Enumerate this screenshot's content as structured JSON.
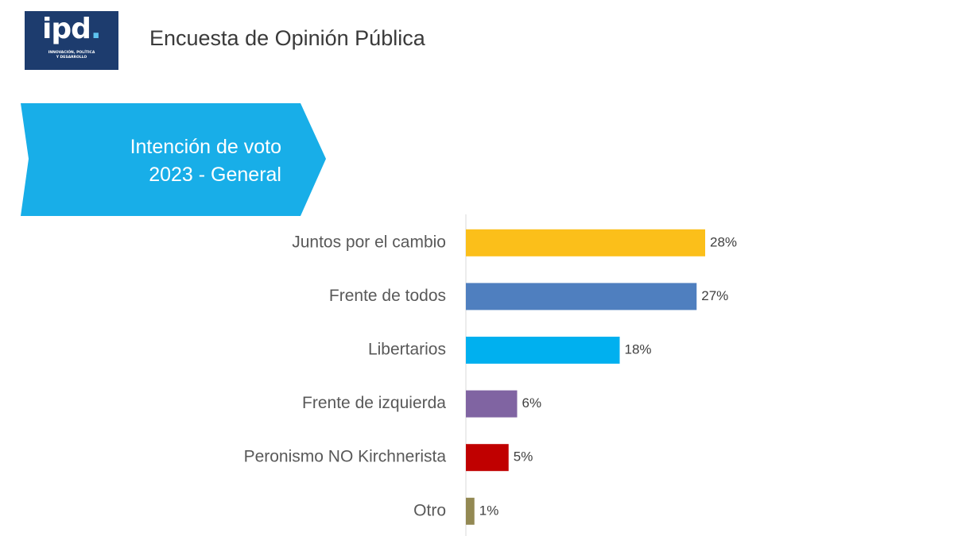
{
  "logo": {
    "word": "ipd",
    "dot": ".",
    "tagline_1": "INNOVACIÓN, POLÍTICA",
    "tagline_2": "Y DESARROLLO"
  },
  "header": {
    "title": "Encuesta de Opinión Pública"
  },
  "banner": {
    "line1": "Intención de voto",
    "line2": "2023 - General"
  },
  "colors": {
    "banner": "#18aee8",
    "logo_bg": "#1d3c6e",
    "bars": [
      "#fbbf1a",
      "#4f7fbf",
      "#00b0ef",
      "#8064a2",
      "#c00000",
      "#938953"
    ]
  },
  "chart_data": {
    "type": "bar",
    "orientation": "horizontal",
    "title": "Intención de voto 2023 - General",
    "categories": [
      "Juntos por el cambio",
      "Frente de todos",
      "Libertarios",
      "Frente de izquierda",
      "Peronismo NO Kirchnerista",
      "Otro"
    ],
    "values": [
      28,
      27,
      18,
      6,
      5,
      1
    ],
    "value_labels": [
      "28%",
      "27%",
      "18%",
      "6%",
      "5%",
      "1%"
    ],
    "unit": "%",
    "xlim": [
      0,
      30
    ],
    "grid": false
  }
}
